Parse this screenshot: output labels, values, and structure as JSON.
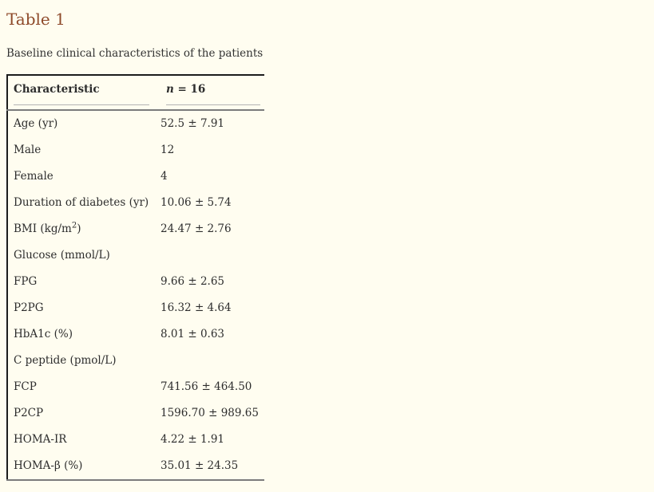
{
  "colors": {
    "background": "#fffdf0",
    "title_accent": "#8e4a2a",
    "body_text": "#2d2d2d",
    "border_dark": "#1c1c1c",
    "border_gray": "#7b7b7b",
    "rule_light": "#b3b3b3"
  },
  "title": "Table 1",
  "caption": "Baseline clinical characteristics of the patients",
  "table": {
    "header": {
      "col1": "Characteristic",
      "col2_var": "n",
      "col2_rest": " = 16"
    },
    "rows": [
      {
        "label": "Age (yr)",
        "value": "52.5 ± 7.91"
      },
      {
        "label": "Male",
        "value": "12"
      },
      {
        "label": "Female",
        "value": "4"
      },
      {
        "label": "Duration of diabetes (yr)",
        "value": "10.06 ± 5.74"
      },
      {
        "label_pre": "BMI (kg/m",
        "label_sup": "2",
        "label_post": ")",
        "value": "24.47 ± 2.76"
      },
      {
        "label": "Glucose (mmol/L)",
        "value": ""
      },
      {
        "label": "FPG",
        "value": "9.66 ± 2.65"
      },
      {
        "label": "P2PG",
        "value": "16.32 ± 4.64"
      },
      {
        "label": "HbA1c (%)",
        "value": "8.01 ± 0.63"
      },
      {
        "label": "C peptide (pmol/L)",
        "value": ""
      },
      {
        "label": "FCP",
        "value": "741.56 ± 464.50"
      },
      {
        "label": "P2CP",
        "value": "1596.70 ± 989.65"
      },
      {
        "label": "HOMA-IR",
        "value": "4.22 ± 1.91"
      },
      {
        "label": "HOMA-β (%)",
        "value": "35.01 ± 24.35"
      }
    ]
  }
}
